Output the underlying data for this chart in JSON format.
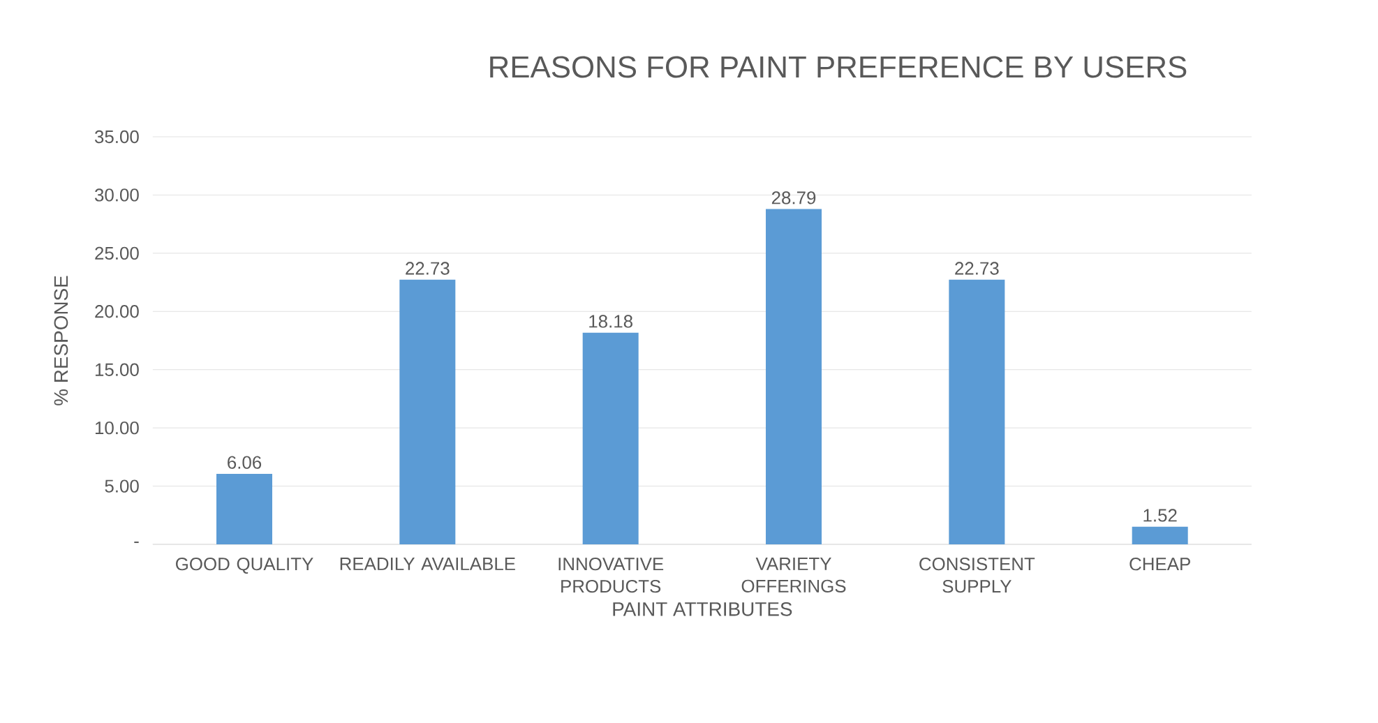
{
  "chart_data": {
    "type": "bar",
    "title": "REASONS FOR PAINT PREFERENCE  BY USERS",
    "xlabel": "PAINT ATTRIBUTES",
    "ylabel": "% RESPONSE",
    "categories": [
      "GOOD QUALITY",
      "READILY AVAILABLE",
      "INNOVATIVE PRODUCTS",
      "VARIETY OFFERINGS",
      "CONSISTENT SUPPLY",
      "CHEAP"
    ],
    "values": [
      6.06,
      22.73,
      18.18,
      28.79,
      22.73,
      1.52
    ],
    "color": "#5b9bd5",
    "ylim": [
      0,
      35
    ],
    "yticks": [
      {
        "value": 0,
        "label": "-"
      },
      {
        "value": 5,
        "label": "5.00"
      },
      {
        "value": 10,
        "label": "10.00"
      },
      {
        "value": 15,
        "label": "15.00"
      },
      {
        "value": 20,
        "label": "20.00"
      },
      {
        "value": 25,
        "label": "25.00"
      },
      {
        "value": 30,
        "label": "30.00"
      },
      {
        "value": 35,
        "label": "35.00"
      }
    ],
    "grid": "y",
    "data_labels": true
  }
}
